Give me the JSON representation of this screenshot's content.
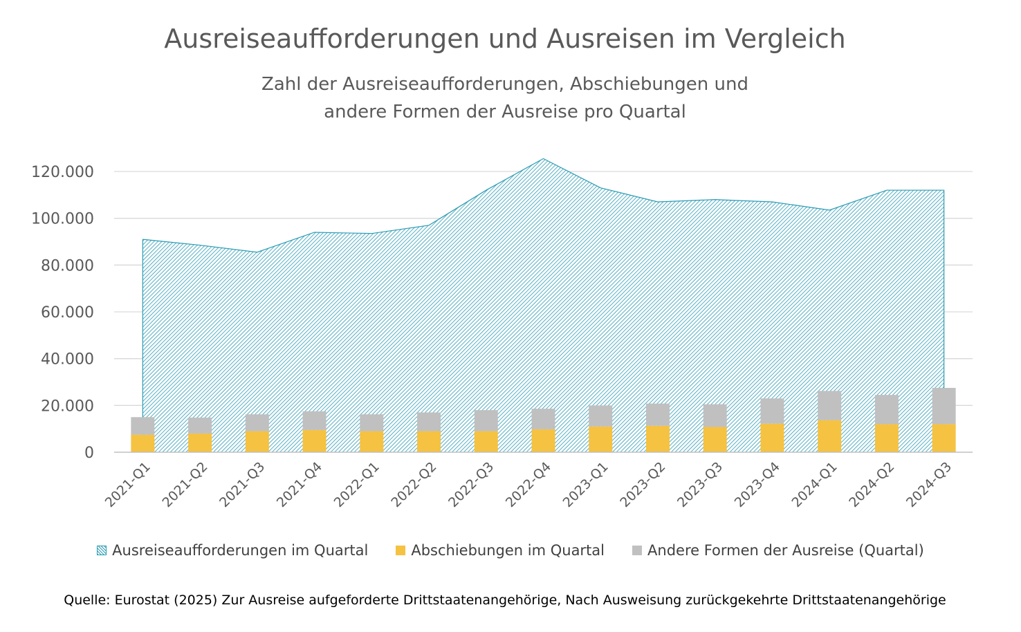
{
  "chart_data": {
    "type": "bar",
    "title": "Ausreiseaufforderungen und Ausreisen im Vergleich",
    "subtitle": "Zahl der Ausreiseaufforderungen, Abschiebungen und andere Formen der Ausreise pro Quartal",
    "categories": [
      "2021-Q1",
      "2021-Q2",
      "2021-Q3",
      "2021-Q4",
      "2022-Q1",
      "2022-Q2",
      "2022-Q3",
      "2022-Q4",
      "2023-Q1",
      "2023-Q2",
      "2023-Q3",
      "2023-Q4",
      "2024-Q1",
      "2024-Q2",
      "2024-Q3"
    ],
    "series": [
      {
        "name": "Ausreiseaufforderungen im Quartal",
        "kind": "area",
        "color": "#2a9bb5",
        "values": [
          91000,
          88500,
          85500,
          94000,
          93500,
          97000,
          112000,
          125500,
          113000,
          107000,
          108000,
          107000,
          103500,
          112000,
          112000
        ]
      },
      {
        "name": "Abschiebungen im Quartal",
        "kind": "stacked-bar",
        "color": "#f5c242",
        "values": [
          7500,
          8000,
          9000,
          9500,
          9000,
          9000,
          9000,
          9800,
          11000,
          11300,
          10800,
          12200,
          13700,
          12000,
          12000
        ]
      },
      {
        "name": "Andere Formen der Ausreise (Quartal)",
        "kind": "stacked-bar",
        "color": "#c0c0c0",
        "values": [
          7500,
          6800,
          7200,
          8000,
          7200,
          8000,
          9000,
          8800,
          9000,
          9500,
          9700,
          10800,
          12500,
          12500,
          15500
        ]
      }
    ],
    "ylim": [
      0,
      120000
    ],
    "yticks": [
      0,
      20000,
      40000,
      60000,
      80000,
      100000,
      120000
    ],
    "ytick_labels": [
      "0",
      "20.000",
      "40.000",
      "60.000",
      "80.000",
      "100.000",
      "120.000"
    ],
    "xlabel": "",
    "ylabel": "",
    "legend": "bottom",
    "grid": true
  },
  "source": "Quelle: Eurostat (2025) Zur Ausreise aufgeforderte Drittstaatenangehörige, Nach Ausweisung zurückgekehrte Drittstaatenangehörige"
}
